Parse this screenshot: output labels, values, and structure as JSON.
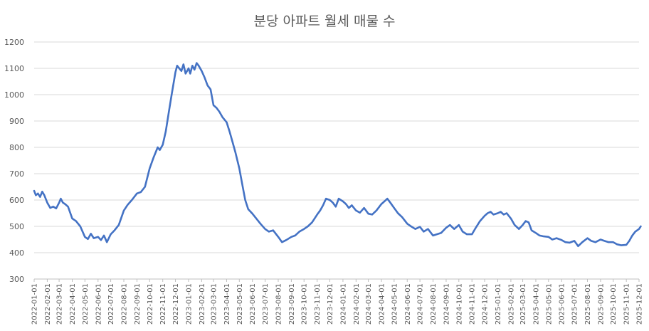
{
  "chart_data": {
    "type": "line",
    "title": "분당 아파트 월세 매물 수",
    "xlabel": "",
    "ylabel": "",
    "ylim": [
      300,
      1200
    ],
    "yticks": [
      300,
      400,
      500,
      600,
      700,
      800,
      900,
      1000,
      1100,
      1200
    ],
    "grid": true,
    "legend": "none",
    "line_color": "#4472C4",
    "x_ticks": [
      "2022-01-01",
      "2022-02-01",
      "2022-03-01",
      "2022-04-01",
      "2022-05-01",
      "2022-06-01",
      "2022-07-01",
      "2022-08-01",
      "2022-09-01",
      "2022-10-01",
      "2022-11-01",
      "2022-12-01",
      "2023-01-01",
      "2023-02-01",
      "2023-03-01",
      "2023-04-01",
      "2023-05-01",
      "2023-06-01",
      "2023-07-01",
      "2023-08-01",
      "2023-09-01",
      "2023-10-01",
      "2023-11-01",
      "2023-12-01",
      "2024-01-01",
      "2024-02-01",
      "2024-03-01",
      "2024-04-01",
      "2024-05-01",
      "2024-06-01",
      "2024-07-01",
      "2024-08-01",
      "2024-09-01",
      "2024-10-01",
      "2024-11-01",
      "2024-12-01",
      "2025-01-01",
      "2025-02-01",
      "2025-03-01",
      "2025-04-01",
      "2025-05-01",
      "2025-06-01",
      "2025-07-01",
      "2025-08-01",
      "2025-09-01",
      "2025-10-01",
      "2025-11-01",
      "2025-12-01"
    ],
    "series": [
      {
        "name": "",
        "points": [
          [
            "2022-01-01",
            635
          ],
          [
            "2022-01-05",
            618
          ],
          [
            "2022-01-10",
            625
          ],
          [
            "2022-01-15",
            612
          ],
          [
            "2022-01-20",
            632
          ],
          [
            "2022-01-25",
            618
          ],
          [
            "2022-02-01",
            590
          ],
          [
            "2022-02-08",
            570
          ],
          [
            "2022-02-15",
            575
          ],
          [
            "2022-02-22",
            568
          ],
          [
            "2022-03-01",
            590
          ],
          [
            "2022-03-05",
            605
          ],
          [
            "2022-03-10",
            590
          ],
          [
            "2022-03-15",
            585
          ],
          [
            "2022-03-22",
            575
          ],
          [
            "2022-04-01",
            530
          ],
          [
            "2022-04-10",
            520
          ],
          [
            "2022-04-20",
            500
          ],
          [
            "2022-05-01",
            460
          ],
          [
            "2022-05-08",
            452
          ],
          [
            "2022-05-15",
            472
          ],
          [
            "2022-05-22",
            455
          ],
          [
            "2022-06-01",
            460
          ],
          [
            "2022-06-08",
            448
          ],
          [
            "2022-06-15",
            465
          ],
          [
            "2022-06-22",
            440
          ],
          [
            "2022-07-01",
            470
          ],
          [
            "2022-07-10",
            485
          ],
          [
            "2022-07-20",
            505
          ],
          [
            "2022-08-01",
            560
          ],
          [
            "2022-08-10",
            582
          ],
          [
            "2022-08-20",
            600
          ],
          [
            "2022-09-01",
            625
          ],
          [
            "2022-09-10",
            630
          ],
          [
            "2022-09-20",
            650
          ],
          [
            "2022-10-01",
            720
          ],
          [
            "2022-10-10",
            760
          ],
          [
            "2022-10-20",
            800
          ],
          [
            "2022-10-25",
            790
          ],
          [
            "2022-11-01",
            810
          ],
          [
            "2022-11-08",
            860
          ],
          [
            "2022-11-15",
            930
          ],
          [
            "2022-11-22",
            1000
          ],
          [
            "2022-12-01",
            1085
          ],
          [
            "2022-12-05",
            1110
          ],
          [
            "2022-12-10",
            1100
          ],
          [
            "2022-12-15",
            1090
          ],
          [
            "2022-12-20",
            1115
          ],
          [
            "2022-12-25",
            1080
          ],
          [
            "2023-01-01",
            1100
          ],
          [
            "2023-01-05",
            1080
          ],
          [
            "2023-01-10",
            1110
          ],
          [
            "2023-01-15",
            1095
          ],
          [
            "2023-01-20",
            1120
          ],
          [
            "2023-01-25",
            1110
          ],
          [
            "2023-02-01",
            1090
          ],
          [
            "2023-02-08",
            1065
          ],
          [
            "2023-02-15",
            1035
          ],
          [
            "2023-02-22",
            1020
          ],
          [
            "2023-03-01",
            960
          ],
          [
            "2023-03-08",
            950
          ],
          [
            "2023-03-15",
            935
          ],
          [
            "2023-03-22",
            915
          ],
          [
            "2023-04-01",
            895
          ],
          [
            "2023-04-08",
            860
          ],
          [
            "2023-04-15",
            820
          ],
          [
            "2023-04-22",
            780
          ],
          [
            "2023-05-01",
            720
          ],
          [
            "2023-05-08",
            660
          ],
          [
            "2023-05-15",
            600
          ],
          [
            "2023-05-22",
            565
          ],
          [
            "2023-06-01",
            548
          ],
          [
            "2023-06-10",
            530
          ],
          [
            "2023-06-20",
            510
          ],
          [
            "2023-07-01",
            490
          ],
          [
            "2023-07-10",
            480
          ],
          [
            "2023-07-20",
            485
          ],
          [
            "2023-08-01",
            460
          ],
          [
            "2023-08-10",
            440
          ],
          [
            "2023-08-20",
            448
          ],
          [
            "2023-09-01",
            460
          ],
          [
            "2023-09-10",
            465
          ],
          [
            "2023-09-20",
            480
          ],
          [
            "2023-10-01",
            490
          ],
          [
            "2023-10-10",
            500
          ],
          [
            "2023-10-20",
            515
          ],
          [
            "2023-11-01",
            545
          ],
          [
            "2023-11-08",
            560
          ],
          [
            "2023-11-15",
            580
          ],
          [
            "2023-11-22",
            605
          ],
          [
            "2023-12-01",
            600
          ],
          [
            "2023-12-08",
            590
          ],
          [
            "2023-12-15",
            575
          ],
          [
            "2023-12-22",
            605
          ],
          [
            "2024-01-01",
            595
          ],
          [
            "2024-01-08",
            585
          ],
          [
            "2024-01-15",
            570
          ],
          [
            "2024-01-22",
            580
          ],
          [
            "2024-02-01",
            560
          ],
          [
            "2024-02-10",
            552
          ],
          [
            "2024-02-20",
            570
          ],
          [
            "2024-03-01",
            548
          ],
          [
            "2024-03-10",
            545
          ],
          [
            "2024-03-20",
            560
          ],
          [
            "2024-04-01",
            585
          ],
          [
            "2024-04-08",
            595
          ],
          [
            "2024-04-15",
            605
          ],
          [
            "2024-04-22",
            590
          ],
          [
            "2024-05-01",
            570
          ],
          [
            "2024-05-10",
            550
          ],
          [
            "2024-05-20",
            535
          ],
          [
            "2024-06-01",
            510
          ],
          [
            "2024-06-10",
            500
          ],
          [
            "2024-06-20",
            490
          ],
          [
            "2024-07-01",
            498
          ],
          [
            "2024-07-10",
            480
          ],
          [
            "2024-07-20",
            490
          ],
          [
            "2024-08-01",
            465
          ],
          [
            "2024-08-10",
            470
          ],
          [
            "2024-08-20",
            475
          ],
          [
            "2024-09-01",
            495
          ],
          [
            "2024-09-10",
            505
          ],
          [
            "2024-09-20",
            490
          ],
          [
            "2024-10-01",
            505
          ],
          [
            "2024-10-10",
            480
          ],
          [
            "2024-10-20",
            470
          ],
          [
            "2024-11-01",
            470
          ],
          [
            "2024-11-10",
            495
          ],
          [
            "2024-11-20",
            520
          ],
          [
            "2024-12-01",
            540
          ],
          [
            "2024-12-08",
            550
          ],
          [
            "2024-12-15",
            555
          ],
          [
            "2024-12-22",
            545
          ],
          [
            "2025-01-01",
            550
          ],
          [
            "2025-01-08",
            555
          ],
          [
            "2025-01-15",
            545
          ],
          [
            "2025-01-22",
            550
          ],
          [
            "2025-02-01",
            530
          ],
          [
            "2025-02-10",
            505
          ],
          [
            "2025-02-20",
            490
          ],
          [
            "2025-03-01",
            505
          ],
          [
            "2025-03-08",
            520
          ],
          [
            "2025-03-15",
            515
          ],
          [
            "2025-03-22",
            485
          ],
          [
            "2025-04-01",
            475
          ],
          [
            "2025-04-10",
            465
          ],
          [
            "2025-04-20",
            462
          ],
          [
            "2025-05-01",
            460
          ],
          [
            "2025-05-10",
            450
          ],
          [
            "2025-05-20",
            455
          ],
          [
            "2025-06-01",
            448
          ],
          [
            "2025-06-10",
            440
          ],
          [
            "2025-06-20",
            438
          ],
          [
            "2025-07-01",
            445
          ],
          [
            "2025-07-10",
            425
          ],
          [
            "2025-07-20",
            440
          ],
          [
            "2025-08-01",
            455
          ],
          [
            "2025-08-10",
            445
          ],
          [
            "2025-08-20",
            440
          ],
          [
            "2025-09-01",
            450
          ],
          [
            "2025-09-10",
            445
          ],
          [
            "2025-09-20",
            440
          ],
          [
            "2025-10-01",
            440
          ],
          [
            "2025-10-10",
            432
          ],
          [
            "2025-10-20",
            428
          ],
          [
            "2025-11-01",
            430
          ],
          [
            "2025-11-08",
            445
          ],
          [
            "2025-11-15",
            465
          ],
          [
            "2025-11-22",
            480
          ],
          [
            "2025-12-01",
            490
          ],
          [
            "2025-12-05",
            500
          ]
        ]
      }
    ]
  }
}
